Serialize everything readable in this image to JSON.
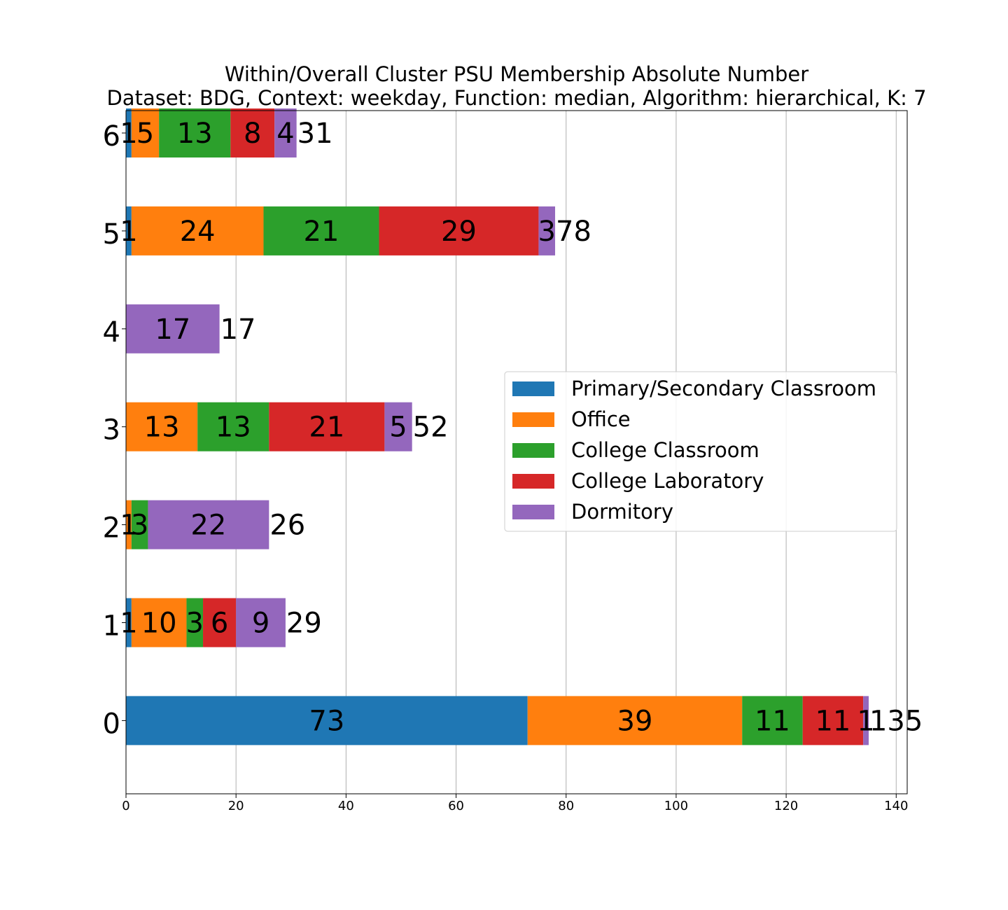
{
  "chart_data": {
    "type": "bar",
    "orientation": "horizontal",
    "stacked": true,
    "title": "Within/Overall Cluster PSU Membership Absolute Number",
    "subtitle": "Dataset: BDG, Context: weekday, Function: median, Algorithm: hierarchical, K: 7",
    "xlabel": "",
    "ylabel": "",
    "xlim": [
      0,
      142
    ],
    "x_ticks": [
      0,
      20,
      40,
      60,
      80,
      100,
      120,
      140
    ],
    "grid": "vertical",
    "legend_position": "right",
    "categories": [
      "0",
      "1",
      "2",
      "3",
      "4",
      "5",
      "6"
    ],
    "series": [
      {
        "name": "Primary/Secondary Classroom",
        "color": "#1f77b4",
        "values": [
          73,
          1,
          0,
          0,
          0,
          1,
          1
        ]
      },
      {
        "name": "Office",
        "color": "#ff7f0e",
        "values": [
          39,
          10,
          1,
          13,
          0,
          24,
          5
        ]
      },
      {
        "name": "College Classroom",
        "color": "#2ca02c",
        "values": [
          11,
          3,
          3,
          13,
          0,
          21,
          13
        ]
      },
      {
        "name": "College Laboratory",
        "color": "#d62728",
        "values": [
          11,
          6,
          0,
          21,
          0,
          29,
          8
        ]
      },
      {
        "name": "Dormitory",
        "color": "#9467bd",
        "values": [
          1,
          9,
          22,
          5,
          17,
          3,
          4
        ]
      }
    ],
    "totals": [
      135,
      29,
      26,
      52,
      17,
      78,
      31
    ]
  }
}
